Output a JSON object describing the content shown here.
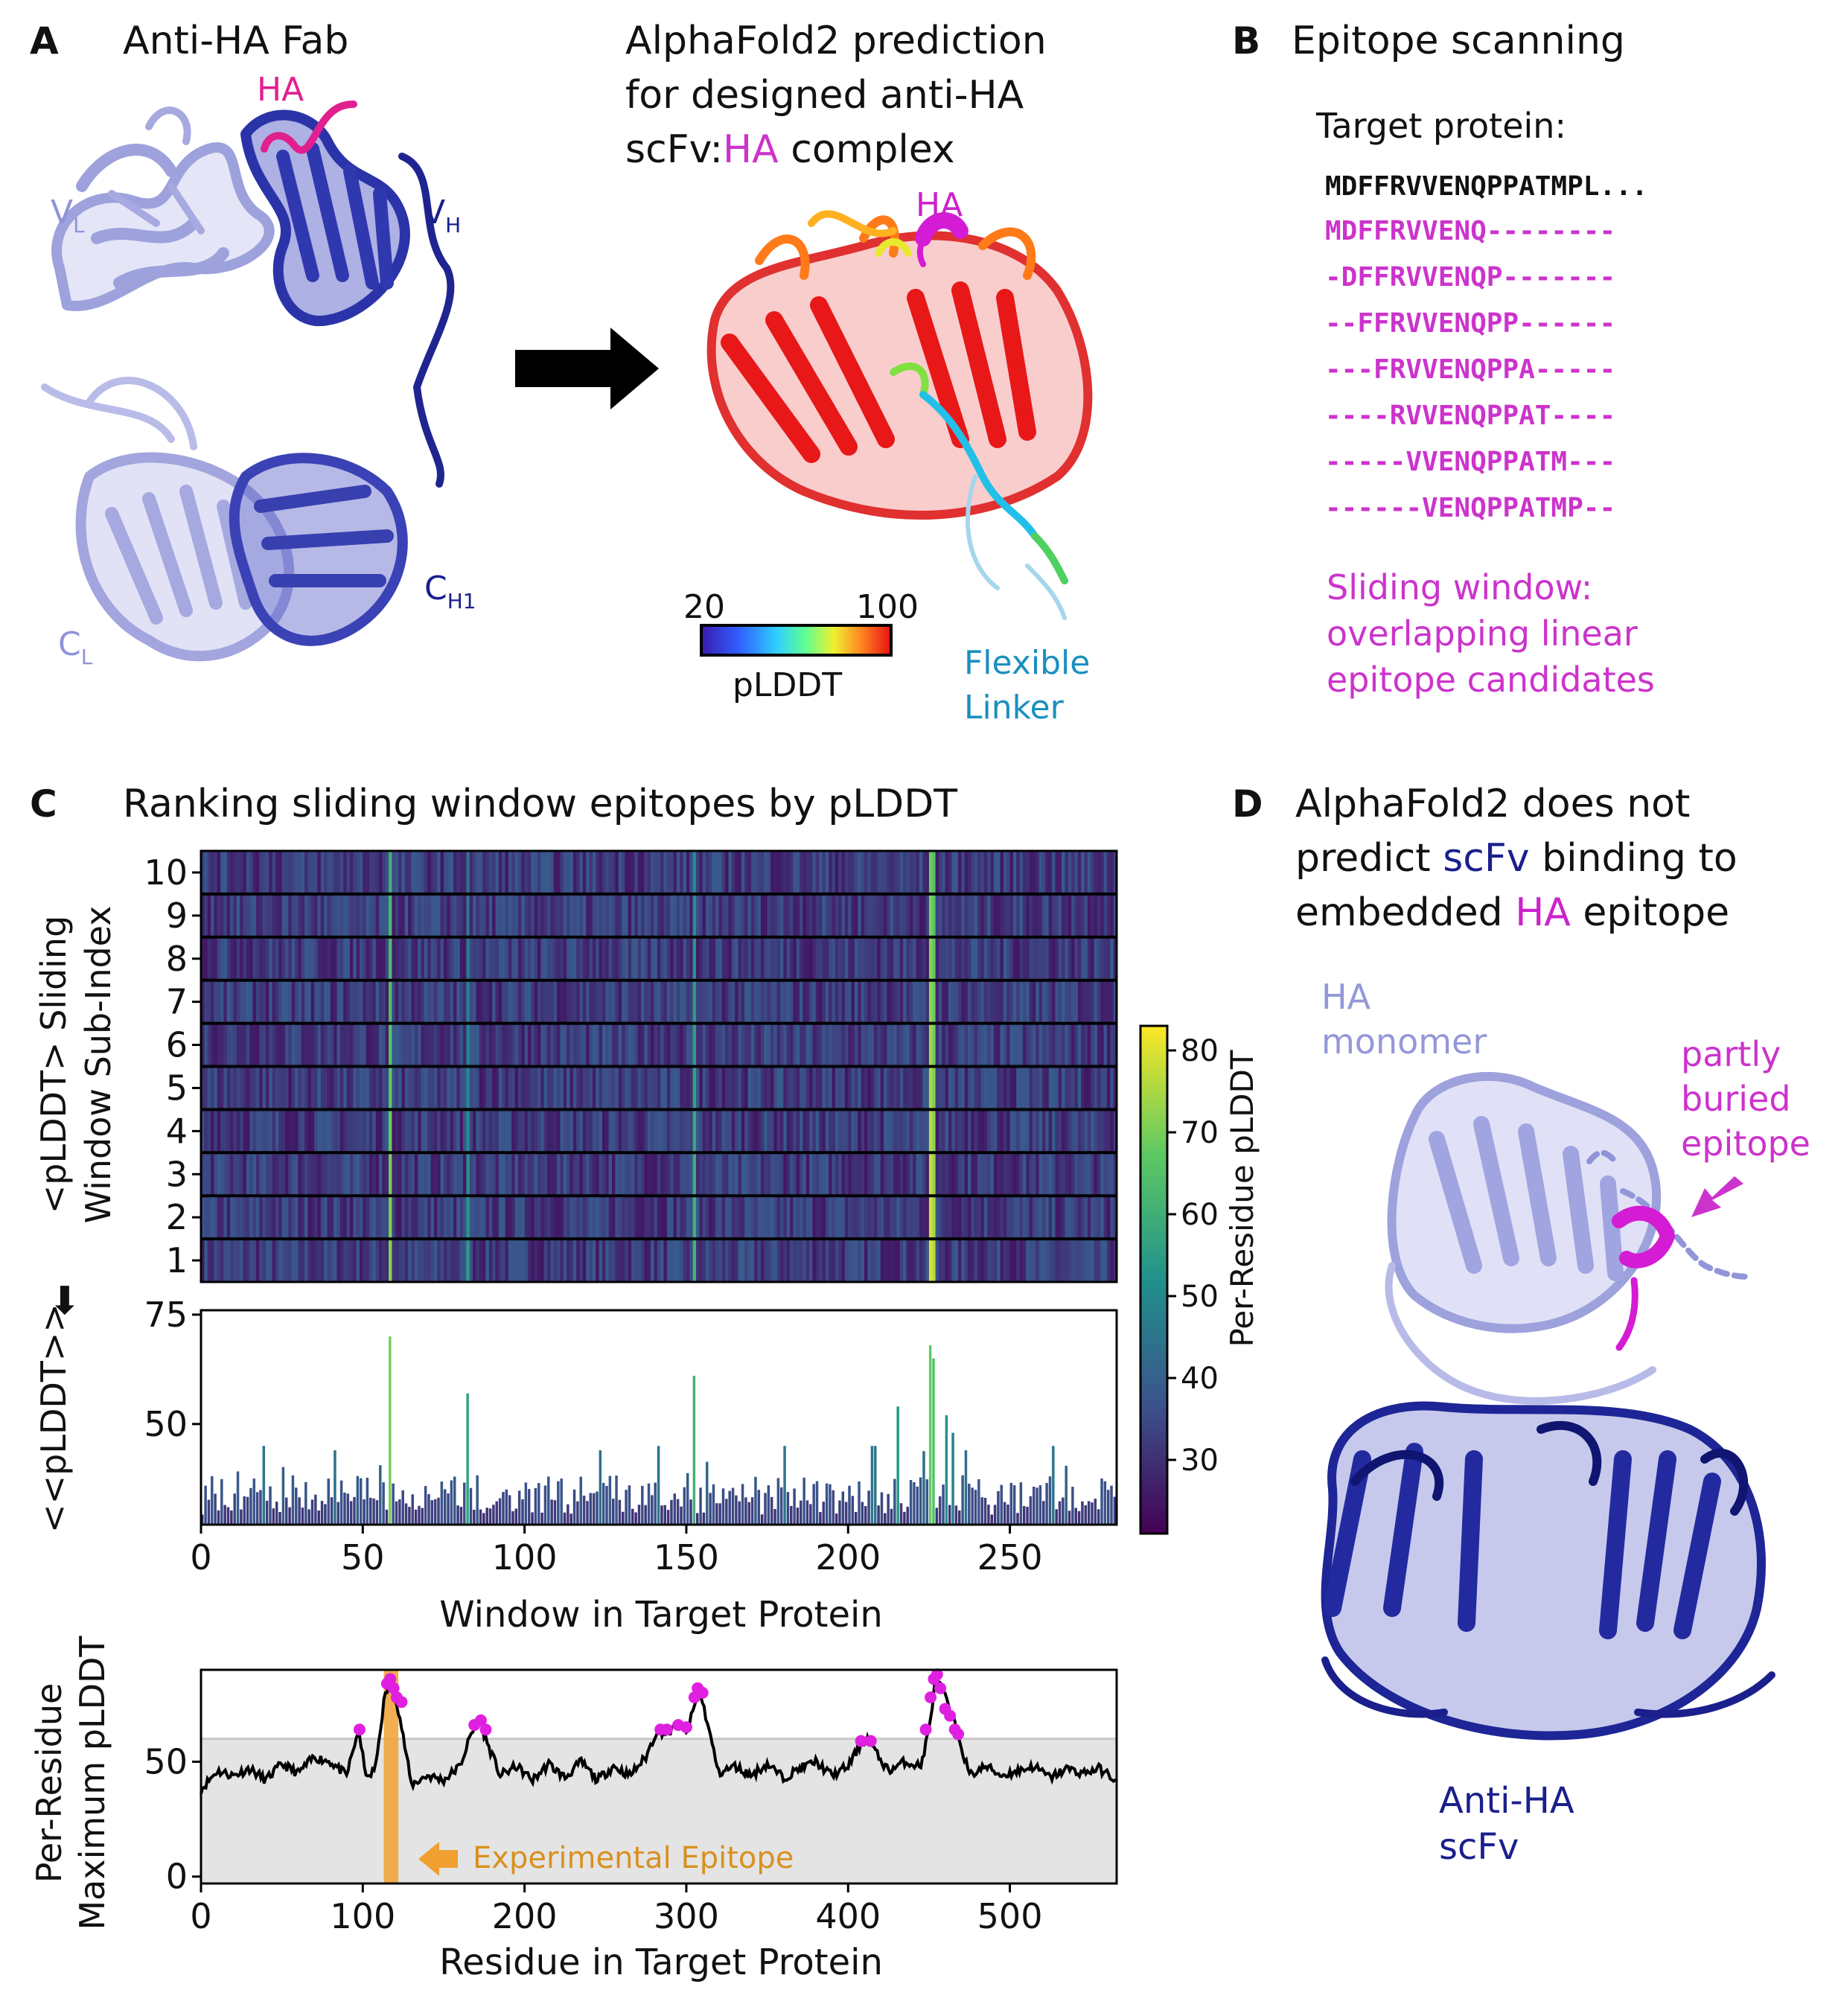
{
  "colors": {
    "magenta": "#cc33cc",
    "ha_pink": "#e0208f",
    "navy": "#1a1f8c",
    "lavender": "#8f93d8",
    "linker": "#1a8fc0",
    "epitope_orange": "#f0a030",
    "shade": "#e4e4e4"
  },
  "panelA": {
    "letter": "A",
    "fab_title": "Anti-HA Fab",
    "ha": "HA",
    "vl": "V",
    "vl_sub": "L",
    "vh": "V",
    "vh_sub": "H",
    "ch1": "C",
    "ch1_sub": "H1",
    "cl": "C",
    "cl_sub": "L",
    "af_line1": "AlphaFold2 prediction",
    "af_line2": "for designed anti-HA",
    "af_line3_pre": "scFv:",
    "af_line3_ha": "HA",
    "af_line3_post": " complex",
    "af_ha": "HA",
    "cbar_min": "20",
    "cbar_max": "100",
    "cbar_label": "pLDDT",
    "linker1": "Flexible",
    "linker2": "Linker"
  },
  "panelB": {
    "letter": "B",
    "title": "Epitope scanning",
    "target_label": "Target protein:",
    "sequence": "MDFFRVVENQPPATMPL...",
    "windows": [
      "MDFFRVVENQ--------",
      "-DFFRVVENQP-------",
      "--FFRVVENQPP------",
      "---FRVVENQPPA-----",
      "----RVVENQPPAT----",
      "-----VVENQPPATM---",
      "------VENQPPATMP--"
    ],
    "note1": "Sliding window:",
    "note2": "overlapping linear",
    "note3": "epitope candidates"
  },
  "panelC": {
    "letter": "C",
    "title": "Ranking sliding window epitopes by pLDDT",
    "heat_ylabel1": "<pLDDT>  Sliding",
    "heat_ylabel2": "Window Sub-Index",
    "arrow": "⬇",
    "bar_ylabel": "<<pLDDT>>",
    "bar_xlabel": "Window in Target Protein",
    "cbar_label": "Per-Residue pLDDT",
    "line_ylabel1": "Per-Residue",
    "line_ylabel2": "Maximum pLDDT",
    "line_xlabel": "Residue in Target Protein",
    "epitope_label": "Experimental Epitope"
  },
  "panelD": {
    "letter": "D",
    "title1_pre": "AlphaFold2 does not",
    "title2_pre": "predict ",
    "title2_hl": "scFv",
    "title2_post": " binding to",
    "title3_pre": "embedded ",
    "title3_hl": "HA",
    "title3_post": " epitope",
    "mono1": "HA",
    "mono2": "monomer",
    "buried1": "partly",
    "buried2": "buried",
    "buried3": "epitope",
    "scfv1": "Anti-HA",
    "scfv2": "scFv"
  },
  "chart_data": [
    {
      "type": "heatmap",
      "ylabel": "<pLDDT>  Sliding Window Sub-Index",
      "rows": [
        1,
        2,
        3,
        4,
        5,
        6,
        7,
        8,
        9,
        10
      ],
      "x_range": [
        0,
        283
      ],
      "colorbar": {
        "label": "Per-Residue pLDDT",
        "range": [
          21,
          83
        ],
        "ticks": [
          30,
          40,
          50,
          60,
          70,
          80
        ],
        "colormap": "viridis"
      },
      "baseline_value": 32,
      "bright_columns": [
        {
          "x": 58,
          "value": 72
        },
        {
          "x": 82,
          "value": 55
        },
        {
          "x": 152,
          "value": 62
        },
        {
          "x": 225,
          "value": 80
        },
        {
          "x": 226,
          "value": 76
        }
      ]
    },
    {
      "type": "bar",
      "xlabel": "Window in Target Protein",
      "ylabel": "<<pLDDT>>",
      "xlim": [
        0,
        283
      ],
      "ylim": [
        27,
        76
      ],
      "xticks": [
        0,
        50,
        100,
        150,
        200,
        250
      ],
      "yticks": [
        50,
        75
      ],
      "n_windows": 283,
      "baseline": 32,
      "peaks": [
        {
          "x": 19,
          "value": 45
        },
        {
          "x": 41,
          "value": 44
        },
        {
          "x": 58,
          "value": 70
        },
        {
          "x": 82,
          "value": 57
        },
        {
          "x": 123,
          "value": 44
        },
        {
          "x": 141,
          "value": 45
        },
        {
          "x": 152,
          "value": 61
        },
        {
          "x": 180,
          "value": 45
        },
        {
          "x": 207,
          "value": 45
        },
        {
          "x": 208,
          "value": 45
        },
        {
          "x": 215,
          "value": 54
        },
        {
          "x": 225,
          "value": 68
        },
        {
          "x": 226,
          "value": 65
        },
        {
          "x": 230,
          "value": 52
        },
        {
          "x": 232,
          "value": 48
        },
        {
          "x": 236,
          "value": 44
        },
        {
          "x": 263,
          "value": 45
        }
      ]
    },
    {
      "type": "line",
      "xlabel": "Residue in Target Protein",
      "ylabel": "Per-Residue Maximum pLDDT",
      "xlim": [
        0,
        566
      ],
      "ylim": [
        -3,
        90
      ],
      "xticks": [
        0,
        100,
        200,
        300,
        400,
        500
      ],
      "yticks": [
        0,
        50
      ],
      "threshold": 60,
      "experimental_epitope": [
        113,
        122
      ],
      "series": [
        {
          "x": [
            0,
            10,
            20,
            30,
            40,
            50,
            60,
            70,
            80,
            90,
            97,
            103,
            108,
            113,
            117,
            120,
            124,
            130,
            140,
            150,
            160,
            167,
            172,
            177,
            185,
            195,
            205,
            215,
            225,
            235,
            245,
            255,
            265,
            275,
            282,
            288,
            295,
            300,
            305,
            308,
            312,
            320,
            330,
            340,
            350,
            360,
            370,
            380,
            390,
            400,
            408,
            412,
            418,
            425,
            435,
            445,
            450,
            454,
            458,
            463,
            468,
            475,
            485,
            495,
            505,
            515,
            525,
            535,
            545,
            555,
            566
          ],
          "y": [
            38,
            46,
            44,
            47,
            42,
            49,
            45,
            52,
            50,
            44,
            63,
            42,
            48,
            76,
            86,
            80,
            65,
            40,
            44,
            42,
            48,
            62,
            68,
            58,
            44,
            48,
            42,
            49,
            43,
            50,
            42,
            48,
            44,
            52,
            64,
            62,
            66,
            62,
            74,
            82,
            70,
            45,
            48,
            44,
            49,
            43,
            47,
            50,
            44,
            48,
            58,
            60,
            53,
            46,
            50,
            48,
            64,
            86,
            82,
            72,
            62,
            44,
            48,
            44,
            46,
            48,
            43,
            47,
            45,
            47,
            42
          ]
        }
      ],
      "highlight_points": [
        [
          98,
          64
        ],
        [
          115,
          84
        ],
        [
          117,
          86
        ],
        [
          119,
          82
        ],
        [
          121,
          78
        ],
        [
          124,
          76
        ],
        [
          169,
          66
        ],
        [
          173,
          68
        ],
        [
          176,
          64
        ],
        [
          284,
          64
        ],
        [
          288,
          64
        ],
        [
          295,
          66
        ],
        [
          300,
          65
        ],
        [
          305,
          78
        ],
        [
          307,
          82
        ],
        [
          310,
          80
        ],
        [
          408,
          59
        ],
        [
          414,
          59
        ],
        [
          448,
          64
        ],
        [
          451,
          78
        ],
        [
          453,
          86
        ],
        [
          455,
          88
        ],
        [
          457,
          82
        ],
        [
          460,
          73
        ],
        [
          463,
          70
        ],
        [
          466,
          64
        ],
        [
          468,
          62
        ]
      ]
    }
  ]
}
